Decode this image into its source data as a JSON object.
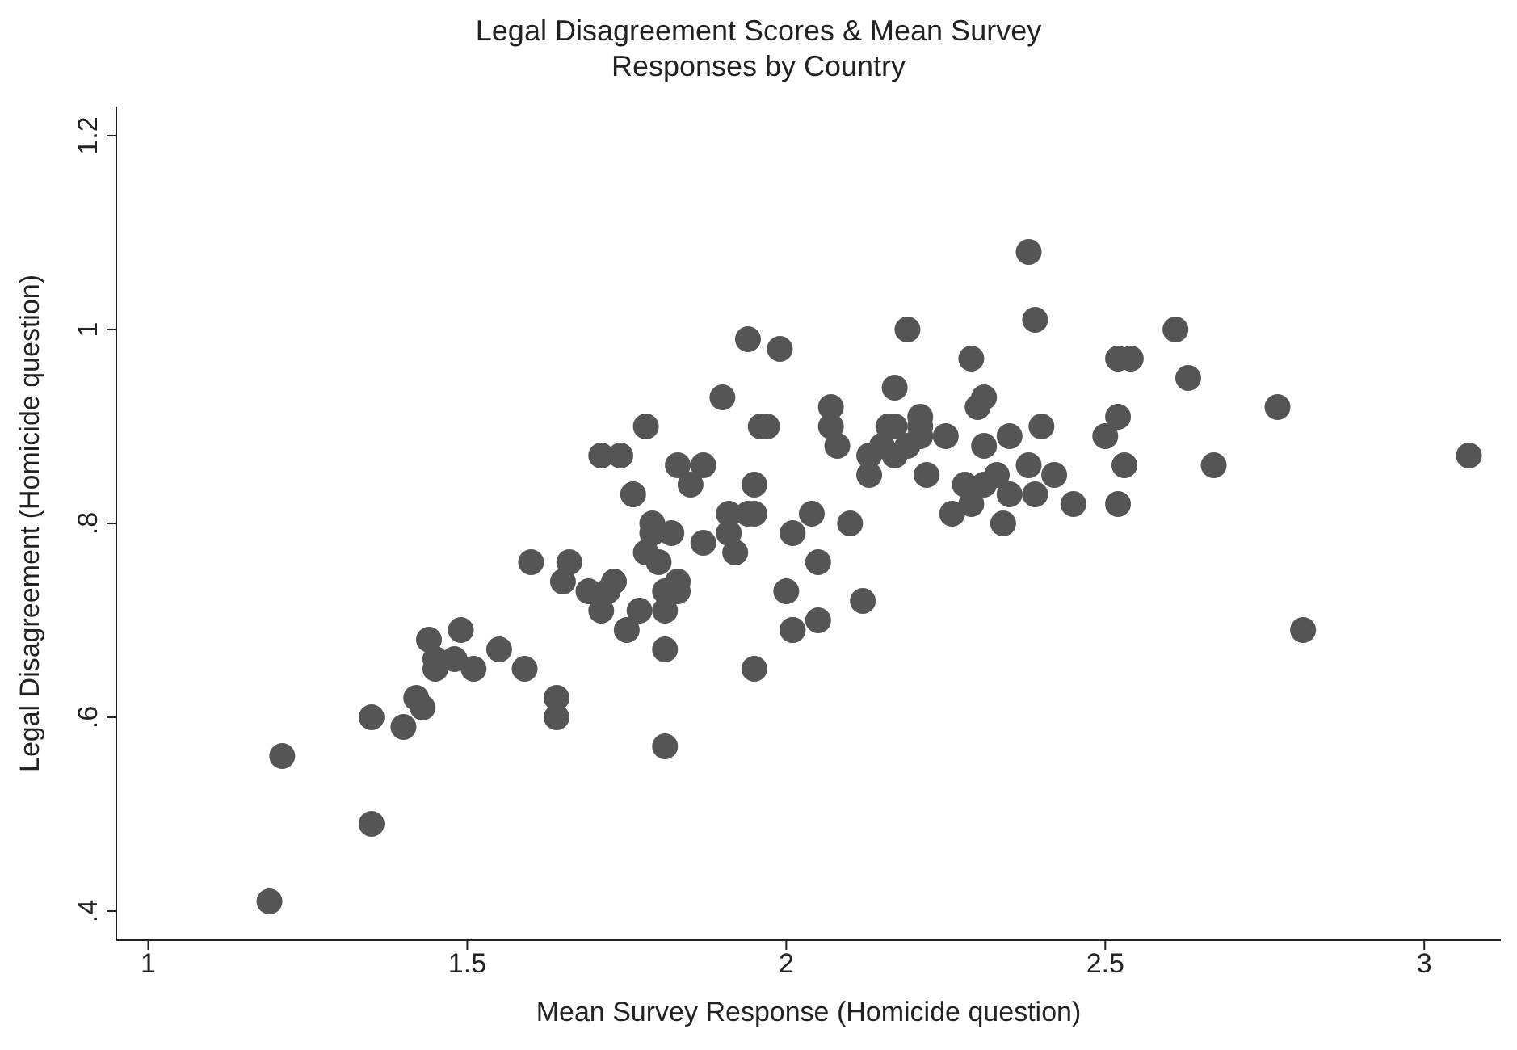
{
  "chart_data": {
    "type": "scatter",
    "title": "Legal Disagreement Scores & Mean Survey Responses by Country",
    "xlabel": "Mean Survey Response (Homicide question)",
    "ylabel": "Legal Disagreement (Homicide question)",
    "x": [
      1.19,
      1.21,
      1.35,
      1.35,
      1.4,
      1.42,
      1.43,
      1.44,
      1.45,
      1.45,
      1.48,
      1.49,
      1.51,
      1.55,
      1.59,
      1.6,
      1.64,
      1.64,
      1.65,
      1.66,
      1.69,
      1.71,
      1.72,
      1.73,
      1.71,
      1.74,
      1.75,
      1.76,
      1.77,
      1.78,
      1.78,
      1.79,
      1.79,
      1.8,
      1.81,
      1.81,
      1.81,
      1.81,
      1.82,
      1.83,
      1.83,
      1.83,
      1.85,
      1.87,
      1.87,
      1.9,
      1.91,
      1.91,
      1.92,
      1.94,
      1.94,
      1.95,
      1.95,
      1.95,
      1.96,
      1.97,
      1.99,
      2.0,
      2.01,
      2.01,
      2.01,
      2.04,
      2.05,
      2.05,
      2.07,
      2.07,
      2.08,
      2.1,
      2.12,
      2.13,
      2.13,
      2.15,
      2.16,
      2.17,
      2.17,
      2.17,
      2.19,
      2.19,
      2.21,
      2.21,
      2.21,
      2.22,
      2.25,
      2.26,
      2.28,
      2.29,
      2.29,
      2.3,
      2.31,
      2.31,
      2.31,
      2.33,
      2.34,
      2.35,
      2.35,
      2.38,
      2.39,
      2.38,
      2.39,
      2.4,
      2.42,
      2.45,
      2.5,
      2.52,
      2.52,
      2.52,
      2.53,
      2.54,
      2.61,
      2.63,
      2.67,
      2.77,
      2.81,
      3.07
    ],
    "values": [
      0.41,
      0.56,
      0.49,
      0.6,
      0.59,
      0.62,
      0.61,
      0.68,
      0.65,
      0.66,
      0.66,
      0.69,
      0.65,
      0.67,
      0.65,
      0.76,
      0.62,
      0.6,
      0.74,
      0.76,
      0.73,
      0.71,
      0.73,
      0.74,
      0.87,
      0.87,
      0.69,
      0.83,
      0.71,
      0.77,
      0.9,
      0.79,
      0.8,
      0.76,
      0.67,
      0.71,
      0.73,
      0.57,
      0.79,
      0.74,
      0.73,
      0.86,
      0.84,
      0.86,
      0.78,
      0.93,
      0.81,
      0.79,
      0.77,
      0.99,
      0.81,
      0.84,
      0.81,
      0.65,
      0.9,
      0.9,
      0.98,
      0.73,
      0.79,
      0.69,
      0.69,
      0.81,
      0.76,
      0.7,
      0.92,
      0.9,
      0.88,
      0.8,
      0.72,
      0.85,
      0.87,
      0.88,
      0.9,
      0.9,
      0.94,
      0.87,
      0.88,
      1.0,
      0.89,
      0.91,
      0.9,
      0.85,
      0.89,
      0.81,
      0.84,
      0.82,
      0.97,
      0.92,
      0.84,
      0.93,
      0.88,
      0.85,
      0.8,
      0.89,
      0.83,
      1.08,
      1.01,
      0.86,
      0.83,
      0.9,
      0.85,
      0.82,
      0.89,
      0.97,
      0.91,
      0.82,
      0.86,
      0.97,
      1.0,
      0.95,
      0.86,
      0.92,
      0.69,
      0.87
    ],
    "color": "#555555",
    "marker": "circle",
    "xlim": [
      0.95,
      3.12
    ],
    "ylim": [
      0.37,
      1.23
    ],
    "xticks": [
      1,
      1.5,
      2,
      2.5,
      3
    ],
    "yticks": [
      {
        "value": 0.4,
        "label": ".4"
      },
      {
        "value": 0.6,
        "label": ".6"
      },
      {
        "value": 0.8,
        "label": ".8"
      },
      1,
      1.2
    ],
    "grid": false,
    "legend": false
  }
}
